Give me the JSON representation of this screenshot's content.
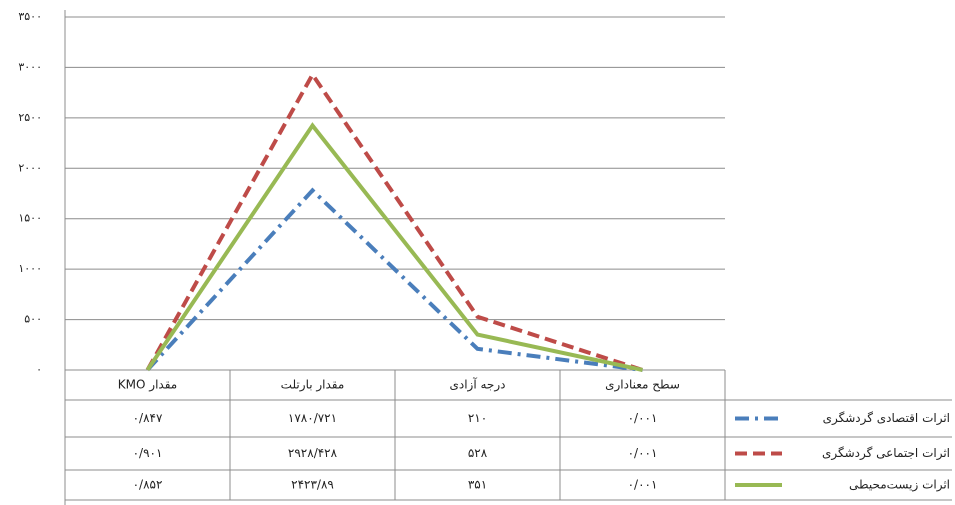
{
  "chart_data": {
    "type": "line",
    "categories": [
      "مقدار KMO",
      "مقدار بارتلت",
      "درجه آزادی",
      "سطح معناداری"
    ],
    "series": [
      {
        "name": "اثرات اقتصادی گردشگری",
        "color": "#4a7ebb",
        "dash": "dash-dot",
        "values": [
          0.847,
          1780.721,
          210,
          0.001
        ],
        "value_labels": [
          "۰/۸۴۷",
          "۱۷۸۰/۷۲۱",
          "۲۱۰",
          "۰/۰۰۱"
        ]
      },
      {
        "name": "اثرات اجتماعی گردشگری",
        "color": "#be4b48",
        "dash": "dashed",
        "values": [
          0.901,
          2928.428,
          528,
          0.001
        ],
        "value_labels": [
          "۰/۹۰۱",
          "۲۹۲۸/۴۲۸",
          "۵۲۸",
          "۰/۰۰۱"
        ]
      },
      {
        "name": "اثرات زیست‌محیطی",
        "color": "#98b954",
        "dash": "solid",
        "values": [
          0.852,
          2423.89,
          351,
          0.001
        ],
        "value_labels": [
          "۰/۸۵۲",
          "۲۴۲۳/۸۹",
          "۳۵۱",
          "۰/۰۰۱"
        ]
      }
    ],
    "ylim": [
      0,
      3500
    ],
    "yticks": [
      {
        "value": 0,
        "label": "۰"
      },
      {
        "value": 500,
        "label": "۵۰۰"
      },
      {
        "value": 1000,
        "label": "۱۰۰۰"
      },
      {
        "value": 1500,
        "label": "۱۵۰۰"
      },
      {
        "value": 2000,
        "label": "۲۰۰۰"
      },
      {
        "value": 2500,
        "label": "۲۵۰۰"
      },
      {
        "value": 3000,
        "label": "۳۰۰۰"
      },
      {
        "value": 3500,
        "label": "۳۵۰۰"
      }
    ],
    "grid": true,
    "data_table": true
  }
}
